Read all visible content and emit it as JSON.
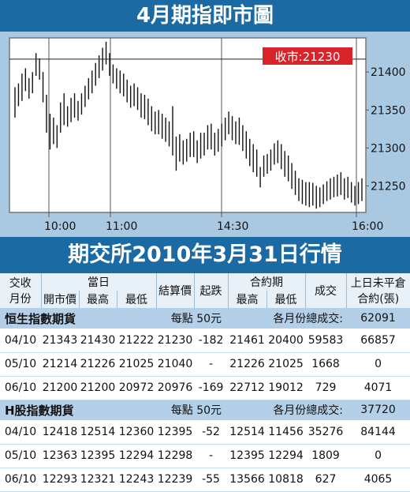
{
  "chart": {
    "title": "4月期指即市圖",
    "close_label": "收市:21230",
    "colors": {
      "banner": "#1b6aa4",
      "panel": "#a9c9e3",
      "close_box": "#d9232b",
      "bars": "#111111"
    }
  },
  "chart_data": {
    "type": "bar",
    "title": "4月期指即市圖",
    "x_ticks": [
      "10:00",
      "11:00",
      "14:30",
      "16:00"
    ],
    "y_ticks": [
      21250,
      21300,
      21350,
      21400
    ],
    "ylim": [
      21215,
      21445
    ],
    "grid": "vertical-at-ticks",
    "reference_level": 21417,
    "annotation": "收市:21230",
    "x": [
      1,
      2,
      3,
      4,
      5,
      6,
      7,
      8,
      9,
      10,
      11,
      12,
      13,
      14,
      15,
      16,
      17,
      18,
      19,
      20,
      21,
      22,
      23,
      24,
      25,
      26,
      27,
      28,
      29,
      30,
      31,
      32,
      33,
      34,
      35,
      36,
      37,
      38,
      39,
      40,
      41,
      42,
      43,
      44,
      45,
      46,
      47,
      48,
      49,
      50,
      51,
      52,
      53,
      54,
      55,
      56,
      57,
      58,
      59,
      60,
      61,
      62,
      63,
      64,
      65,
      66,
      67,
      68,
      69,
      70,
      71,
      72,
      73,
      74,
      75,
      76,
      77,
      78,
      79,
      80,
      81,
      82,
      83,
      84,
      85,
      86,
      87,
      88,
      89,
      90,
      91,
      92,
      93,
      94,
      95,
      96,
      97,
      98,
      99,
      100
    ],
    "high": [
      21380,
      21385,
      21398,
      21405,
      21392,
      21400,
      21425,
      21418,
      21400,
      21370,
      21345,
      21340,
      21330,
      21360,
      21372,
      21355,
      21366,
      21372,
      21362,
      21372,
      21382,
      21392,
      21402,
      21412,
      21422,
      21432,
      21440,
      21425,
      21410,
      21405,
      21402,
      21398,
      21390,
      21382,
      21385,
      21380,
      21372,
      21370,
      21365,
      21355,
      21348,
      21350,
      21345,
      21340,
      21335,
      21355,
      21315,
      21318,
      21310,
      21312,
      21320,
      21322,
      21310,
      21320,
      21320,
      21330,
      21332,
      21320,
      21325,
      21332,
      21340,
      21348,
      21342,
      21335,
      21340,
      21330,
      21322,
      21312,
      21305,
      21298,
      21275,
      21290,
      21292,
      21298,
      21306,
      21310,
      21305,
      21296,
      21290,
      21280,
      21270,
      21260,
      21258,
      21255,
      21255,
      21254,
      21250,
      21248,
      21252,
      21256,
      21260,
      21262,
      21265,
      21268,
      21260,
      21262,
      21255,
      21250,
      21255,
      21260
    ],
    "low": [
      21340,
      21355,
      21362,
      21375,
      21365,
      21372,
      21395,
      21390,
      21360,
      21320,
      21298,
      21305,
      21300,
      21320,
      21330,
      21328,
      21334,
      21340,
      21336,
      21344,
      21354,
      21364,
      21372,
      21382,
      21392,
      21402,
      21410,
      21395,
      21385,
      21378,
      21372,
      21368,
      21360,
      21353,
      21355,
      21350,
      21340,
      21338,
      21330,
      21322,
      21318,
      21318,
      21312,
      21308,
      21302,
      21290,
      21270,
      21282,
      21278,
      21282,
      21288,
      21288,
      21280,
      21286,
      21290,
      21298,
      21298,
      21290,
      21295,
      21302,
      21310,
      21318,
      21310,
      21305,
      21304,
      21296,
      21286,
      21276,
      21268,
      21262,
      21248,
      21262,
      21266,
      21270,
      21278,
      21280,
      21272,
      21262,
      21256,
      21246,
      21238,
      21230,
      21226,
      21224,
      21222,
      21224,
      21220,
      21222,
      21226,
      21230,
      21232,
      21235,
      21236,
      21238,
      21232,
      21234,
      21228,
      21224,
      21226,
      21230
    ]
  },
  "table": {
    "title": "期交所2010年3月31日行情",
    "h": {
      "month1": "交收",
      "month2": "月份",
      "today": "當日",
      "open": "開市價",
      "high": "最高",
      "low": "最低",
      "settle": "結算價",
      "change": "起跌",
      "contract": "合約期",
      "chigh": "最高",
      "clow": "最低",
      "volume": "成交",
      "oi1": "上日未平倉",
      "oi2": "合約(張)"
    },
    "sections": [
      {
        "name": "恒生指數期貨",
        "unit": "每點 50元",
        "total_label": "各月份總成交:",
        "total": "62091",
        "rows": [
          [
            "04/10",
            "21343",
            "21430",
            "21222",
            "21230",
            "-182",
            "21461",
            "20400",
            "59583",
            "66857"
          ],
          [
            "05/10",
            "21214",
            "21226",
            "21025",
            "21040",
            "-",
            "21226",
            "21025",
            "1668",
            "0"
          ],
          [
            "06/10",
            "21200",
            "21200",
            "20972",
            "20976",
            "-169",
            "22712",
            "19012",
            "729",
            "4071"
          ]
        ]
      },
      {
        "name": "H股指數期貨",
        "unit": "每點 50元",
        "total_label": "各月份總成交:",
        "total": "37720",
        "rows": [
          [
            "04/10",
            "12418",
            "12514",
            "12360",
            "12395",
            "-52",
            "12514",
            "11456",
            "35276",
            "84144"
          ],
          [
            "05/10",
            "12363",
            "12395",
            "12294",
            "12298",
            "-",
            "12395",
            "12294",
            "1809",
            "0"
          ],
          [
            "06/10",
            "12293",
            "12321",
            "12243",
            "12239",
            "-55",
            "13566",
            "10818",
            "627",
            "4065"
          ]
        ]
      }
    ]
  }
}
